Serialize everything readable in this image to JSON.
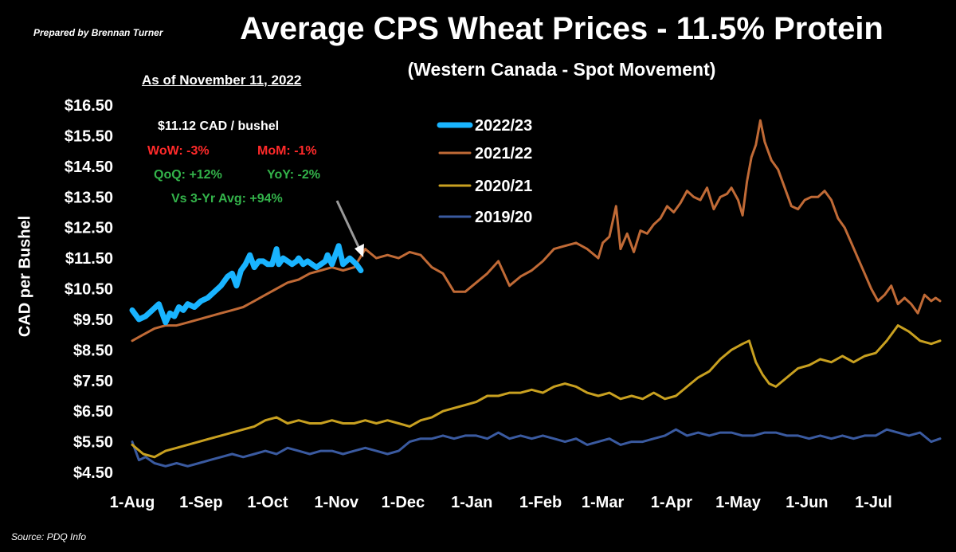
{
  "header": {
    "prepared_by": "Prepared by Brennan Turner",
    "title": "Average CPS Wheat Prices - 11.5% Protein",
    "subtitle": "(Western Canada - Spot Movement)",
    "as_of": "As of November 11, 2022",
    "source": "Source: PDQ Info"
  },
  "annotation": {
    "price": "$11.12 CAD / bushel",
    "wow": "WoW: -3%",
    "mom": "MoM: -1%",
    "qoq": "QoQ: +12%",
    "yoy": "YoY: -2%",
    "vs_avg": "Vs 3-Yr Avg: +94%"
  },
  "colors": {
    "background": "#000000",
    "red": "#ff2a2a",
    "green": "#33b34a",
    "s2022": "#19b4ff",
    "s2021": "#c06a36",
    "s2020": "#c8a020",
    "s2019": "#3a5aa0"
  },
  "chart_data": {
    "type": "line",
    "title": "Average CPS Wheat Prices - 11.5% Protein",
    "subtitle": "(Western Canada - Spot Movement)",
    "ylabel": "CAD per Bushel",
    "xlabel": "",
    "ylim": [
      4.5,
      16.5
    ],
    "yticks": [
      "$16.50",
      "$15.50",
      "$14.50",
      "$13.50",
      "$12.50",
      "$11.50",
      "$10.50",
      "$9.50",
      "$8.50",
      "$7.50",
      "$6.50",
      "$5.50",
      "$4.50"
    ],
    "ytick_values": [
      16.5,
      15.5,
      14.5,
      13.5,
      12.5,
      11.5,
      10.5,
      9.5,
      8.5,
      7.5,
      6.5,
      5.5,
      4.5
    ],
    "xticks": [
      "1-Aug",
      "1-Sep",
      "1-Oct",
      "1-Nov",
      "1-Dec",
      "1-Jan",
      "1-Feb",
      "1-Mar",
      "1-Apr",
      "1-May",
      "1-Jun",
      "1-Jul"
    ],
    "xtick_days": [
      0,
      31,
      61,
      92,
      122,
      153,
      184,
      212,
      243,
      273,
      304,
      334
    ],
    "x_units": "days since 1-Aug",
    "legend_position": "top-center",
    "grid": false,
    "series": [
      {
        "name": "2022/23",
        "color": "#19b4ff",
        "x": [
          0,
          3,
          6,
          9,
          12,
          15,
          17,
          19,
          21,
          23,
          25,
          28,
          31,
          34,
          37,
          40,
          43,
          45,
          47,
          49,
          51,
          53,
          55,
          57,
          59,
          61,
          63,
          65,
          66,
          68,
          70,
          72,
          74,
          75,
          77,
          79,
          81,
          83,
          85,
          87,
          88,
          90,
          93,
          95,
          98,
          101,
          103
        ],
        "y": [
          9.8,
          9.5,
          9.6,
          9.8,
          10.0,
          9.4,
          9.7,
          9.6,
          9.9,
          9.8,
          10.0,
          9.9,
          10.1,
          10.2,
          10.4,
          10.6,
          10.9,
          11.0,
          10.6,
          11.1,
          11.3,
          11.6,
          11.2,
          11.4,
          11.4,
          11.3,
          11.3,
          11.8,
          11.3,
          11.5,
          11.4,
          11.3,
          11.4,
          11.5,
          11.3,
          11.4,
          11.3,
          11.2,
          11.3,
          11.4,
          11.6,
          11.3,
          11.9,
          11.3,
          11.5,
          11.3,
          11.1
        ]
      },
      {
        "name": "2021/22",
        "color": "#c06a36",
        "x": [
          0,
          5,
          10,
          15,
          20,
          25,
          30,
          35,
          40,
          45,
          50,
          55,
          60,
          65,
          70,
          75,
          80,
          85,
          90,
          95,
          100,
          105,
          110,
          115,
          120,
          125,
          130,
          135,
          140,
          145,
          150,
          155,
          160,
          165,
          170,
          175,
          180,
          185,
          190,
          195,
          200,
          205,
          210,
          212,
          215,
          218,
          220,
          223,
          226,
          229,
          232,
          235,
          238,
          241,
          244,
          247,
          250,
          253,
          256,
          259,
          262,
          265,
          268,
          270,
          273,
          275,
          277,
          279,
          281,
          283,
          285,
          288,
          291,
          294,
          297,
          300,
          303,
          306,
          309,
          312,
          315,
          318,
          321,
          324,
          327,
          330,
          333,
          336,
          339,
          342,
          345,
          348,
          351,
          354,
          357,
          360,
          362,
          364
        ],
        "y": [
          8.8,
          9.0,
          9.2,
          9.3,
          9.3,
          9.4,
          9.5,
          9.6,
          9.7,
          9.8,
          9.9,
          10.1,
          10.3,
          10.5,
          10.7,
          10.8,
          11.0,
          11.1,
          11.2,
          11.1,
          11.2,
          11.8,
          11.5,
          11.6,
          11.5,
          11.7,
          11.6,
          11.2,
          11.0,
          10.4,
          10.4,
          10.7,
          11.0,
          11.4,
          10.6,
          10.9,
          11.1,
          11.4,
          11.8,
          11.9,
          12.0,
          11.8,
          11.5,
          12.0,
          12.2,
          13.2,
          11.8,
          12.3,
          11.7,
          12.4,
          12.3,
          12.6,
          12.8,
          13.2,
          13.0,
          13.3,
          13.7,
          13.5,
          13.4,
          13.8,
          13.1,
          13.5,
          13.6,
          13.8,
          13.4,
          12.9,
          14.0,
          14.8,
          15.2,
          16.0,
          15.3,
          14.7,
          14.4,
          13.8,
          13.2,
          13.1,
          13.4,
          13.5,
          13.5,
          13.7,
          13.4,
          12.8,
          12.5,
          12.0,
          11.5,
          11.0,
          10.5,
          10.1,
          10.3,
          10.6,
          10.0,
          10.2,
          10.0,
          9.7,
          10.3,
          10.1,
          10.2,
          10.1
        ]
      },
      {
        "name": "2020/21",
        "color": "#c8a020",
        "x": [
          0,
          5,
          10,
          15,
          20,
          25,
          30,
          35,
          40,
          45,
          50,
          55,
          60,
          65,
          70,
          75,
          80,
          85,
          90,
          95,
          100,
          105,
          110,
          115,
          120,
          125,
          130,
          135,
          140,
          145,
          150,
          155,
          160,
          165,
          170,
          175,
          180,
          185,
          190,
          195,
          200,
          205,
          210,
          215,
          220,
          225,
          230,
          235,
          240,
          245,
          250,
          255,
          260,
          265,
          270,
          275,
          278,
          281,
          284,
          287,
          290,
          295,
          300,
          305,
          310,
          315,
          320,
          325,
          330,
          335,
          340,
          345,
          350,
          355,
          360,
          364
        ],
        "y": [
          5.4,
          5.1,
          5.0,
          5.2,
          5.3,
          5.4,
          5.5,
          5.6,
          5.7,
          5.8,
          5.9,
          6.0,
          6.2,
          6.3,
          6.1,
          6.2,
          6.1,
          6.1,
          6.2,
          6.1,
          6.1,
          6.2,
          6.1,
          6.2,
          6.1,
          6.0,
          6.2,
          6.3,
          6.5,
          6.6,
          6.7,
          6.8,
          7.0,
          7.0,
          7.1,
          7.1,
          7.2,
          7.1,
          7.3,
          7.4,
          7.3,
          7.1,
          7.0,
          7.1,
          6.9,
          7.0,
          6.9,
          7.1,
          6.9,
          7.0,
          7.3,
          7.6,
          7.8,
          8.2,
          8.5,
          8.7,
          8.8,
          8.1,
          7.7,
          7.4,
          7.3,
          7.6,
          7.9,
          8.0,
          8.2,
          8.1,
          8.3,
          8.1,
          8.3,
          8.4,
          8.8,
          9.3,
          9.1,
          8.8,
          8.7,
          8.8
        ]
      },
      {
        "name": "2019/20",
        "color": "#3a5aa0",
        "x": [
          0,
          3,
          6,
          10,
          15,
          20,
          25,
          30,
          35,
          40,
          45,
          50,
          55,
          60,
          65,
          70,
          75,
          80,
          85,
          90,
          95,
          100,
          105,
          110,
          115,
          120,
          125,
          130,
          135,
          140,
          145,
          150,
          155,
          160,
          165,
          170,
          175,
          180,
          185,
          190,
          195,
          200,
          205,
          210,
          215,
          220,
          225,
          230,
          235,
          240,
          245,
          250,
          255,
          260,
          265,
          270,
          275,
          280,
          285,
          290,
          295,
          300,
          305,
          310,
          315,
          320,
          325,
          330,
          335,
          340,
          345,
          350,
          355,
          360,
          364
        ],
        "y": [
          5.5,
          4.9,
          5.0,
          4.8,
          4.7,
          4.8,
          4.7,
          4.8,
          4.9,
          5.0,
          5.1,
          5.0,
          5.1,
          5.2,
          5.1,
          5.3,
          5.2,
          5.1,
          5.2,
          5.2,
          5.1,
          5.2,
          5.3,
          5.2,
          5.1,
          5.2,
          5.5,
          5.6,
          5.6,
          5.7,
          5.6,
          5.7,
          5.7,
          5.6,
          5.8,
          5.6,
          5.7,
          5.6,
          5.7,
          5.6,
          5.5,
          5.6,
          5.4,
          5.5,
          5.6,
          5.4,
          5.5,
          5.5,
          5.6,
          5.7,
          5.9,
          5.7,
          5.8,
          5.7,
          5.8,
          5.8,
          5.7,
          5.7,
          5.8,
          5.8,
          5.7,
          5.7,
          5.6,
          5.7,
          5.6,
          5.7,
          5.6,
          5.7,
          5.7,
          5.9,
          5.8,
          5.7,
          5.8,
          5.5,
          5.6
        ]
      }
    ]
  }
}
